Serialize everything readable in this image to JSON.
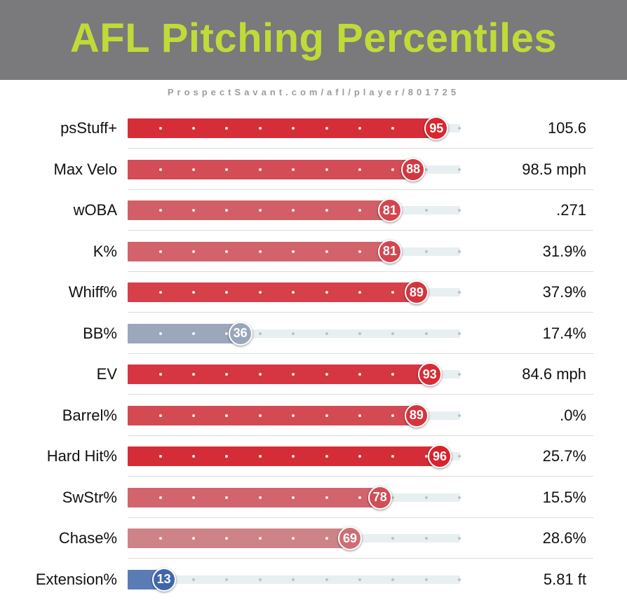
{
  "header": {
    "title": "AFL Pitching Percentiles",
    "title_color": "#bfdb38",
    "background": "#7a797b"
  },
  "source_url": "ProspectSavant.com/afl/player/801725",
  "chart_data": {
    "type": "bar",
    "orientation": "horizontal",
    "xlim": [
      0,
      100
    ],
    "categories": [
      "psStuff+",
      "Max Velo",
      "wOBA",
      "K%",
      "Whiff%",
      "BB%",
      "EV",
      "Barrel%",
      "Hard Hit%",
      "SwStr%",
      "Chase%",
      "Extension%"
    ],
    "values": [
      95,
      88,
      81,
      81,
      89,
      36,
      93,
      89,
      96,
      78,
      69,
      13
    ],
    "stat_values": [
      "105.6",
      "98.5 mph",
      ".271",
      "31.9%",
      "37.9%",
      "17.4%",
      "84.6 mph",
      ".0%",
      "25.7%",
      "15.5%",
      "28.6%",
      "5.81 ft"
    ],
    "colors": [
      "#d52e38",
      "#d34c56",
      "#d25f68",
      "#d2636b",
      "#d54049",
      "#9aa7bd",
      "#d63641",
      "#d44a53",
      "#d42d37",
      "#d1646c",
      "#ce8389",
      "#5a7cb4"
    ],
    "knob_colors": [
      "#d9262f",
      "#d5363f",
      "#d4464f",
      "#d4464f",
      "#d6343d",
      "#98a6bb",
      "#d82b34",
      "#d6343d",
      "#d9232c",
      "#d24d55",
      "#cf6d74",
      "#3f66ad"
    ]
  }
}
